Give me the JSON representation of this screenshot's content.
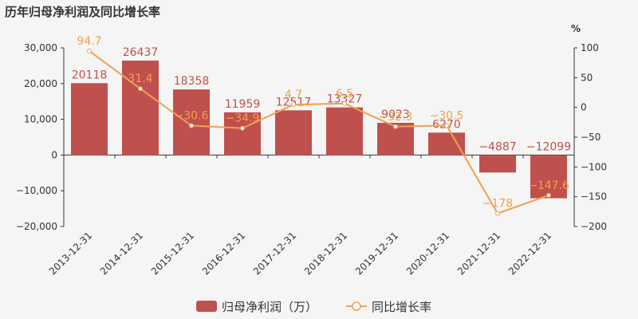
{
  "chart_data": {
    "type": "bar",
    "title": "历年归母净利润及同比增长率",
    "categories": [
      "2013-12-31",
      "2014-12-31",
      "2015-12-31",
      "2016-12-31",
      "2017-12-31",
      "2018-12-31",
      "2019-12-31",
      "2020-12-31",
      "2021-12-31",
      "2022-12-31"
    ],
    "series": [
      {
        "name": "归母净利润（万）",
        "type": "bar",
        "axis": "left",
        "values": [
          20118,
          26437,
          18358,
          11959,
          12517,
          13327,
          9023,
          6270,
          -4887,
          -12099
        ],
        "labels": [
          "20118",
          "26437",
          "18358",
          "11959",
          "12517",
          "13327",
          "9023",
          "6270",
          "−4887",
          "−12099"
        ]
      },
      {
        "name": "同比增长率",
        "type": "line",
        "axis": "right",
        "values": [
          94.7,
          31.4,
          -30.6,
          -34.9,
          4.7,
          6.5,
          -32.3,
          -30.5,
          -178,
          -147.6
        ],
        "labels": [
          "94.7",
          "31.4",
          "−30.6",
          "−34.9",
          "4.7",
          "6.5",
          "−32.3",
          "−30.5",
          "−178",
          "−147.6"
        ]
      }
    ],
    "y_left": {
      "ylim": [
        -20000,
        30000
      ],
      "ticks": [
        30000,
        20000,
        10000,
        0,
        -10000,
        -20000
      ],
      "tick_labels": [
        "30,000",
        "20,000",
        "10,000",
        "0",
        "−10,000",
        "−20,000"
      ]
    },
    "y_right": {
      "label": "%",
      "ylim": [
        -200,
        100
      ],
      "ticks": [
        100,
        50,
        0,
        -50,
        -100,
        -150,
        -200
      ],
      "tick_labels": [
        "100",
        "50",
        "0",
        "−50",
        "−100",
        "−150",
        "−200"
      ]
    },
    "legend_position": "bottom-center",
    "colors": {
      "bar": "#c0504d",
      "line": "#f0a050"
    }
  }
}
